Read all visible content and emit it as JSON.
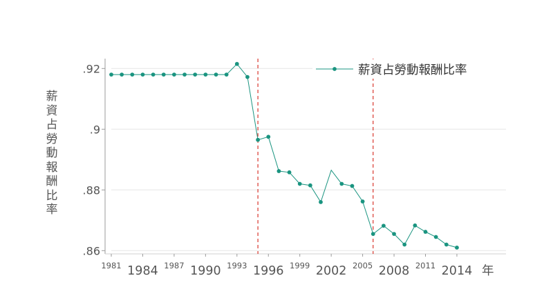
{
  "chart_data": {
    "type": "line",
    "ylabel": "薪資占勞動報酬比率",
    "xlabel_unit": "年",
    "legend": {
      "label": "薪資占勞動報酬比率",
      "position": "top-right"
    },
    "series_color": "#1a9480",
    "ref_line_color": "#d9342b",
    "grid": true,
    "x_ticks_small": [
      "1981",
      "1987",
      "1993",
      "1999",
      "2005",
      "2011"
    ],
    "x_ticks_large": [
      "1984",
      "1990",
      "1996",
      "2002",
      "2008",
      "2014"
    ],
    "y_ticks": [
      {
        "value": 0.86,
        "label": ".86"
      },
      {
        "value": 0.88,
        "label": ".88"
      },
      {
        "value": 0.9,
        "label": ".9"
      },
      {
        "value": 0.92,
        "label": ".92"
      }
    ],
    "xlim": [
      1981,
      2019
    ],
    "ylim": [
      0.8585,
      0.9235
    ],
    "vlines": [
      1995,
      2006
    ],
    "series": [
      {
        "x": [
          1981,
          1982,
          1983,
          1984,
          1985,
          1986,
          1987,
          1988,
          1989,
          1990,
          1991,
          1992,
          1993,
          1994,
          1995,
          1996,
          1997,
          1998,
          1999,
          2000,
          2001,
          2002,
          2003,
          2004,
          2005,
          2006,
          2007,
          2008,
          2009,
          2010,
          2011,
          2012,
          2013,
          2014
        ],
        "y": [
          0.918,
          0.918,
          0.918,
          0.918,
          0.918,
          0.918,
          0.918,
          0.918,
          0.918,
          0.918,
          0.918,
          0.918,
          0.9215,
          0.9172,
          0.8965,
          0.8975,
          0.8862,
          0.8858,
          0.882,
          0.8815,
          0.876,
          0.8865,
          0.882,
          0.8813,
          0.8762,
          0.8655,
          0.8682,
          0.8655,
          0.862,
          0.8683,
          0.8662,
          0.8645,
          0.862,
          0.861
        ],
        "markers": [
          true,
          true,
          true,
          true,
          true,
          true,
          true,
          true,
          true,
          true,
          true,
          true,
          true,
          true,
          true,
          true,
          true,
          true,
          true,
          true,
          true,
          false,
          true,
          true,
          true,
          true,
          true,
          true,
          true,
          true,
          true,
          true,
          true,
          true
        ]
      }
    ]
  }
}
